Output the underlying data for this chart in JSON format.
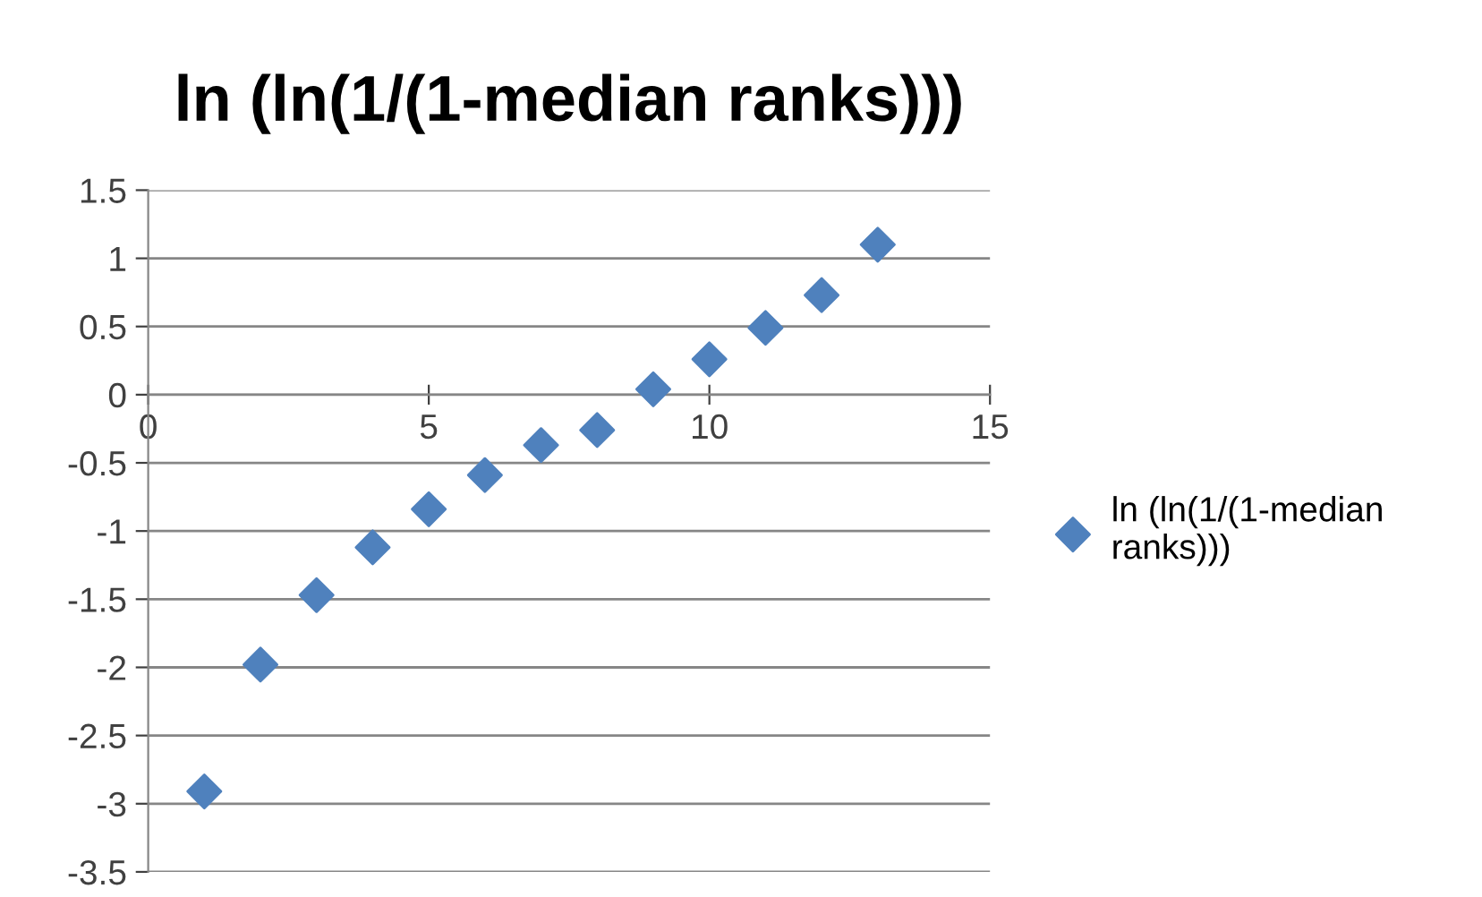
{
  "chart_data": {
    "type": "scatter",
    "title": "ln (ln(1/(1-median ranks)))",
    "x": [
      1,
      2,
      3,
      4,
      5,
      6,
      7,
      8,
      9,
      10,
      11,
      12,
      13
    ],
    "series": [
      {
        "name": "ln (ln(1/(1-median ranks)))",
        "color": "#4f81bd",
        "values": [
          -2.91,
          -1.98,
          -1.47,
          -1.12,
          -0.84,
          -0.59,
          -0.37,
          -0.26,
          0.04,
          0.26,
          0.49,
          0.73,
          1.1
        ]
      }
    ],
    "xlim": [
      0,
      15
    ],
    "xticks": [
      0,
      5,
      10,
      15
    ],
    "ylim": [
      -3.5,
      1.5
    ],
    "yticks": [
      -3.5,
      -3,
      -2.5,
      -2,
      -1.5,
      -1,
      -0.5,
      0,
      0.5,
      1,
      1.5
    ],
    "grid": "y",
    "legend": "right",
    "marker": "diamond"
  }
}
